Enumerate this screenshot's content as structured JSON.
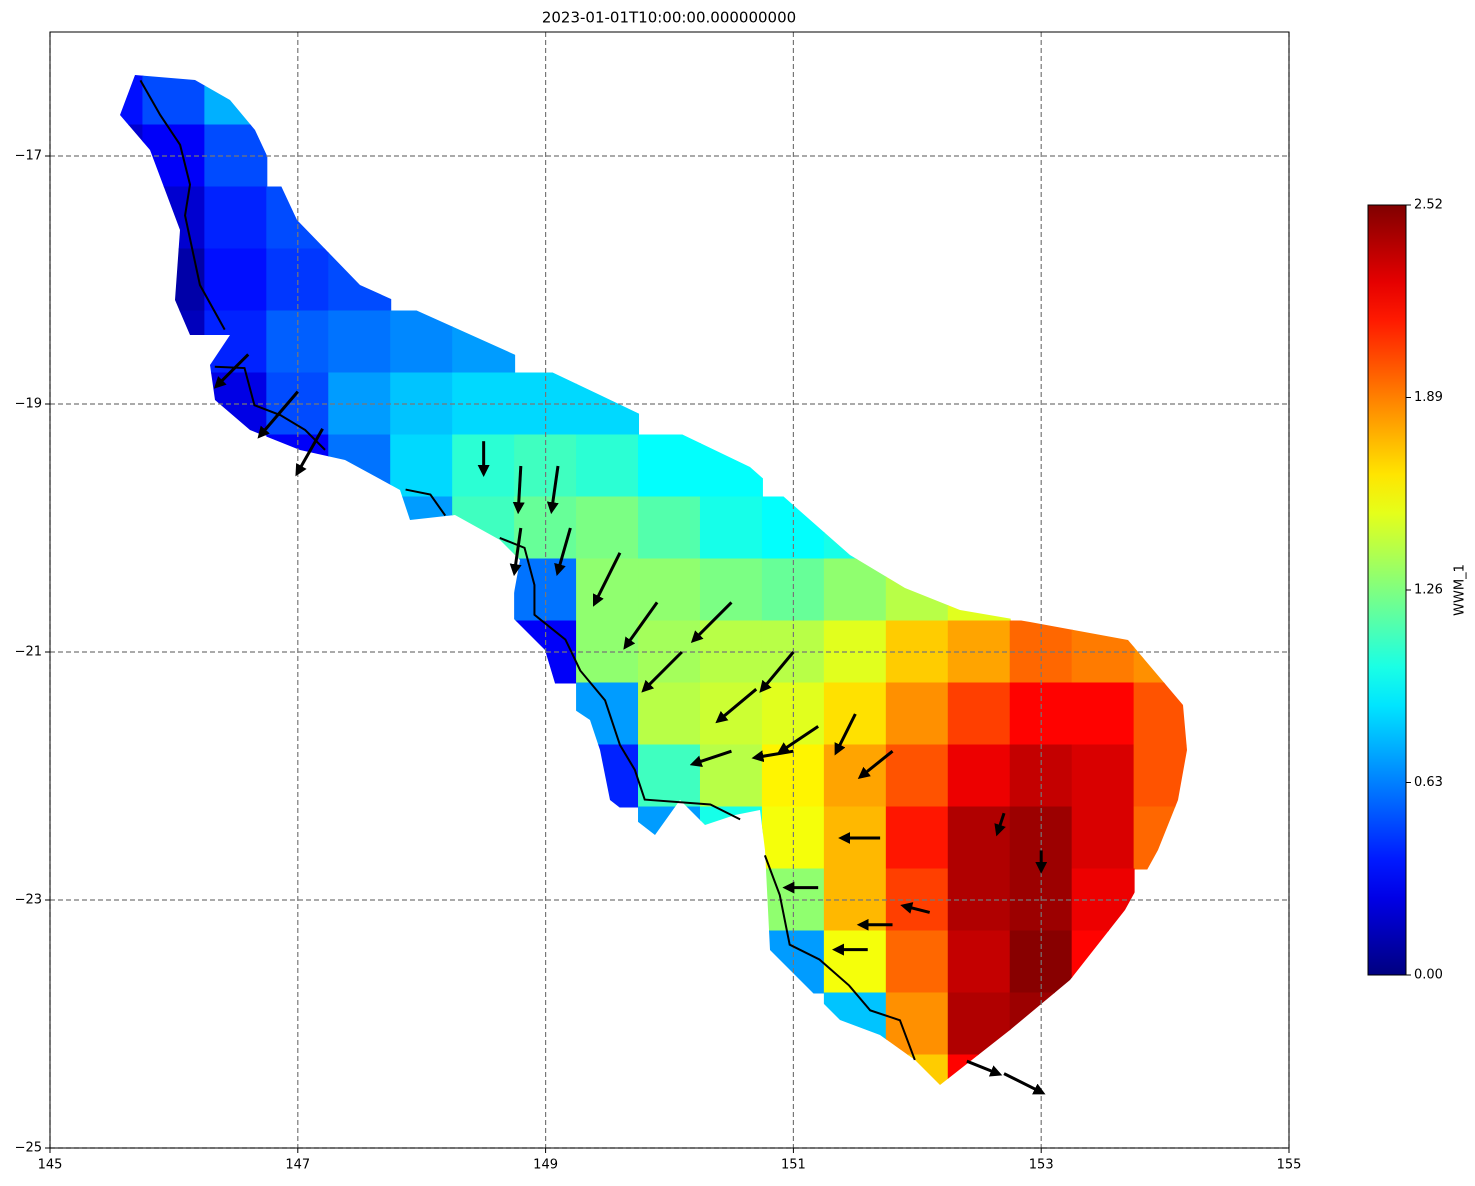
{
  "chart_data": {
    "type": "map",
    "title": "2023-01-01T10:00:00.000000000",
    "xlim": [
      145,
      155
    ],
    "ylim": [
      -25,
      -16
    ],
    "xticks": [
      145,
      147,
      149,
      151,
      153,
      155
    ],
    "yticks": [
      {
        "value": -25,
        "label": "−25"
      },
      {
        "value": -23,
        "label": "−23"
      },
      {
        "value": -21,
        "label": "−21"
      },
      {
        "value": -19,
        "label": "−19"
      },
      {
        "value": -17,
        "label": "−17"
      }
    ],
    "grid": true,
    "colorbar": {
      "label": "WWM_1",
      "clim": [
        0,
        2.52
      ],
      "ticks": [
        {
          "value": 0,
          "label": "0.00"
        },
        {
          "value": 0.63,
          "label": "0.63"
        },
        {
          "value": 1.26,
          "label": "1.26"
        },
        {
          "value": 1.89,
          "label": "1.89"
        },
        {
          "value": 2.52,
          "label": "2.52"
        }
      ]
    },
    "field": [
      {
        "lat": -16.5,
        "lon": [
          145.5,
          146,
          146.5
        ],
        "values": [
          0.35,
          0.5,
          0.75
        ]
      },
      {
        "lat": -17,
        "lon": [
          145.5,
          146,
          146.5
        ],
        "values": [
          0.2,
          0.3,
          0.5
        ]
      },
      {
        "lat": -17.5,
        "lon": [
          146,
          146.5,
          147
        ],
        "values": [
          0.2,
          0.4,
          0.5
        ]
      },
      {
        "lat": -18,
        "lon": [
          146,
          146.5,
          147,
          147.5
        ],
        "values": [
          0.1,
          0.35,
          0.45,
          0.5
        ]
      },
      {
        "lat": -18.5,
        "lon": [
          146,
          146.5,
          147,
          147.5,
          148,
          148.5
        ],
        "values": [
          0.15,
          0.4,
          0.55,
          0.6,
          0.65,
          0.7
        ]
      },
      {
        "lat": -19,
        "lon": [
          146.5,
          147,
          147.5,
          148,
          148.5,
          149,
          149.5
        ],
        "values": [
          0.25,
          0.5,
          0.7,
          0.8,
          0.85,
          0.85,
          0.85
        ]
      },
      {
        "lat": -19.5,
        "lon": [
          147,
          147.5,
          148,
          148.5,
          149,
          149.5,
          150,
          150.5
        ],
        "values": [
          0.3,
          0.6,
          0.85,
          1.05,
          1.1,
          1.05,
          0.95,
          0.95
        ]
      },
      {
        "lat": -20,
        "lon": [
          148,
          148.5,
          149,
          149.5,
          150,
          150.5,
          151,
          151.5
        ],
        "values": [
          0.7,
          1.1,
          1.2,
          1.25,
          1.15,
          1.0,
          0.95,
          1.0
        ]
      },
      {
        "lat": -20.5,
        "lon": [
          149,
          149.5,
          150,
          150.5,
          151,
          151.5,
          152,
          152.5
        ],
        "values": [
          0.6,
          1.3,
          1.3,
          1.25,
          1.2,
          1.3,
          1.4,
          1.5
        ]
      },
      {
        "lat": -21,
        "lon": [
          149,
          149.5,
          150,
          150.5,
          151,
          151.5,
          152,
          152.5,
          153,
          153.5,
          154
        ],
        "values": [
          0.3,
          1.3,
          1.35,
          1.4,
          1.4,
          1.5,
          1.7,
          1.8,
          1.95,
          1.9,
          1.85
        ]
      },
      {
        "lat": -21.5,
        "lon": [
          149.5,
          150,
          150.5,
          151,
          151.5,
          152,
          152.5,
          153,
          153.5,
          154
        ],
        "values": [
          0.7,
          1.4,
          1.45,
          1.5,
          1.65,
          1.85,
          2.05,
          2.2,
          2.2,
          2.0
        ]
      },
      {
        "lat": -22,
        "lon": [
          149.5,
          150,
          150.5,
          151,
          151.5,
          152,
          152.5,
          153,
          153.5,
          154
        ],
        "values": [
          0.4,
          1.1,
          1.4,
          1.6,
          1.8,
          2.0,
          2.25,
          2.35,
          2.3,
          2.0
        ]
      },
      {
        "lat": -22.5,
        "lon": [
          150,
          150.5,
          151,
          151.5,
          152,
          152.5,
          153,
          153.5,
          154
        ],
        "values": [
          0.7,
          1.0,
          1.55,
          1.75,
          2.15,
          2.4,
          2.45,
          2.3,
          1.95
        ]
      },
      {
        "lat": -23,
        "lon": [
          151,
          151.5,
          152,
          152.5,
          153,
          153.5
        ],
        "values": [
          1.3,
          1.75,
          2.05,
          2.4,
          2.45,
          2.25
        ]
      },
      {
        "lat": -23.5,
        "lon": [
          151,
          151.5,
          152,
          152.5,
          153,
          153.5
        ],
        "values": [
          0.7,
          1.55,
          1.95,
          2.35,
          2.5,
          2.2
        ]
      },
      {
        "lat": -24,
        "lon": [
          151.5,
          152,
          152.5,
          153
        ],
        "values": [
          0.8,
          1.85,
          2.4,
          2.45
        ]
      },
      {
        "lat": -24.5,
        "lon": [
          152,
          152.5
        ],
        "values": [
          1.7,
          2.2
        ]
      }
    ],
    "arrows": {
      "x": [
        148.5,
        148.8,
        149.1,
        148.8,
        149.2,
        149.6,
        149.9,
        150.5,
        150.1,
        151.0,
        150.7,
        151.2,
        150.5,
        151.0,
        151.5,
        151.8,
        151.7,
        151.8,
        151.2,
        147.0,
        147.2,
        146.6,
        152.7,
        152.4,
        152.7,
        152.1,
        151.6,
        153.0
      ],
      "y": [
        -19.3,
        -19.5,
        -19.5,
        -20.0,
        -20.0,
        -20.2,
        -20.6,
        -20.6,
        -21.0,
        -21.0,
        -21.3,
        -21.6,
        -21.8,
        -21.8,
        -21.5,
        -21.8,
        -22.5,
        -23.2,
        -22.9,
        -18.9,
        -19.2,
        -18.6,
        -24.4,
        -24.3,
        -22.3,
        -23.1,
        -23.4,
        -22.6
      ],
      "u": [
        0,
        -0.02,
        -0.05,
        -0.05,
        -0.1,
        -0.2,
        -0.25,
        -0.3,
        -0.3,
        -0.25,
        -0.3,
        -0.3,
        -0.3,
        -0.3,
        -0.15,
        -0.25,
        -0.3,
        -0.25,
        -0.25,
        -0.3,
        -0.2,
        -0.25,
        0.3,
        0.25,
        -0.05,
        -0.2,
        -0.25,
        0
      ],
      "v": [
        -0.25,
        -0.35,
        -0.35,
        -0.35,
        -0.35,
        -0.4,
        -0.35,
        -0.3,
        -0.3,
        -0.3,
        -0.25,
        -0.2,
        -0.1,
        -0.05,
        -0.3,
        -0.2,
        0,
        0,
        0,
        -0.35,
        -0.35,
        -0.25,
        -0.15,
        -0.1,
        -0.15,
        0.05,
        0,
        -0.15
      ]
    },
    "coastline": {
      "x": [
        145.73,
        145.89,
        146.05,
        146.13,
        146.09,
        146.21,
        146.41,
        null,
        146.33,
        146.57,
        146.65,
        146.86,
        147.06,
        147.22,
        null,
        147.87,
        148.07,
        148.19,
        null,
        148.63,
        148.83,
        148.91,
        148.91,
        149.16,
        149.28,
        149.48,
        149.6,
        149.72,
        149.8,
        150.33,
        150.57,
        null,
        150.77,
        150.89,
        150.97,
        151.21,
        151.45,
        151.62,
        151.86,
        151.98
      ],
      "y": [
        -16.39,
        -16.67,
        -16.91,
        -17.23,
        -17.48,
        -18.04,
        -18.4,
        null,
        -18.7,
        -18.71,
        -19.01,
        -19.09,
        -19.21,
        -19.37,
        null,
        -19.69,
        -19.73,
        -19.9,
        null,
        -20.08,
        -20.16,
        -20.46,
        -20.7,
        -20.9,
        -21.15,
        -21.39,
        -21.75,
        -21.95,
        -22.19,
        -22.23,
        -22.35,
        null,
        -22.64,
        -22.96,
        -23.36,
        -23.48,
        -23.69,
        -23.89,
        -23.97,
        -24.29
      ]
    }
  }
}
